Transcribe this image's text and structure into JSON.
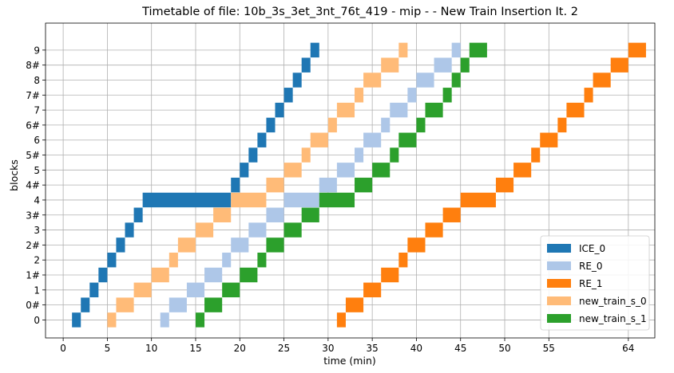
{
  "chart_data": {
    "type": "bar",
    "orientation": "horizontal-gantt",
    "title": "Timetable of file: 10b_3s_3et_3nt_76t_419 - mip -  - New Train Insertion It. 2",
    "xlabel": "time (min)",
    "ylabel": "blocks",
    "grid": true,
    "legend_position": "lower-right",
    "xlim": [
      -2,
      67
    ],
    "x_ticks": [
      0,
      5,
      10,
      15,
      20,
      25,
      30,
      35,
      40,
      45,
      50,
      55,
      64
    ],
    "x_tick_labels": [
      "0",
      "5",
      "10",
      "15",
      "20",
      "25",
      "30",
      "35",
      "40",
      "45",
      "50",
      "55",
      "64"
    ],
    "categories": [
      "0",
      "0#",
      "1",
      "1#",
      "2",
      "2#",
      "3",
      "3#",
      "4",
      "4#",
      "5",
      "5#",
      "6",
      "6#",
      "7",
      "7#",
      "8",
      "8#",
      "9"
    ],
    "series": [
      {
        "name": "ICE_0",
        "color": "#1f77b4",
        "segments": [
          {
            "block": "0",
            "start": 1.0,
            "end": 2.0
          },
          {
            "block": "0#",
            "start": 2.0,
            "end": 3.0
          },
          {
            "block": "1",
            "start": 3.0,
            "end": 4.0
          },
          {
            "block": "1#",
            "start": 4.0,
            "end": 5.0
          },
          {
            "block": "2",
            "start": 5.0,
            "end": 6.0
          },
          {
            "block": "2#",
            "start": 6.0,
            "end": 7.0
          },
          {
            "block": "3",
            "start": 7.0,
            "end": 8.0
          },
          {
            "block": "3#",
            "start": 8.0,
            "end": 9.0
          },
          {
            "block": "4",
            "start": 9.0,
            "end": 19.0
          },
          {
            "block": "4#",
            "start": 19.0,
            "end": 20.0
          },
          {
            "block": "5",
            "start": 20.0,
            "end": 21.0
          },
          {
            "block": "5#",
            "start": 21.0,
            "end": 22.0
          },
          {
            "block": "6",
            "start": 22.0,
            "end": 23.0
          },
          {
            "block": "6#",
            "start": 23.0,
            "end": 24.0
          },
          {
            "block": "7",
            "start": 24.0,
            "end": 25.0
          },
          {
            "block": "7#",
            "start": 25.0,
            "end": 26.0
          },
          {
            "block": "8",
            "start": 26.0,
            "end": 27.0
          },
          {
            "block": "8#",
            "start": 27.0,
            "end": 28.0
          },
          {
            "block": "9",
            "start": 28.0,
            "end": 29.0
          }
        ]
      },
      {
        "name": "RE_0",
        "color": "#aec7e8",
        "segments": [
          {
            "block": "0",
            "start": 11.0,
            "end": 12.0
          },
          {
            "block": "0#",
            "start": 12.0,
            "end": 14.0
          },
          {
            "block": "1",
            "start": 14.0,
            "end": 16.0
          },
          {
            "block": "1#",
            "start": 16.0,
            "end": 18.0
          },
          {
            "block": "2",
            "start": 18.0,
            "end": 19.0
          },
          {
            "block": "2#",
            "start": 19.0,
            "end": 21.0
          },
          {
            "block": "3",
            "start": 21.0,
            "end": 23.0
          },
          {
            "block": "3#",
            "start": 23.0,
            "end": 25.0
          },
          {
            "block": "4",
            "start": 25.0,
            "end": 29.0
          },
          {
            "block": "4#",
            "start": 29.0,
            "end": 31.0
          },
          {
            "block": "5",
            "start": 31.0,
            "end": 33.0
          },
          {
            "block": "5#",
            "start": 33.0,
            "end": 34.0
          },
          {
            "block": "6",
            "start": 34.0,
            "end": 36.0
          },
          {
            "block": "6#",
            "start": 36.0,
            "end": 37.0
          },
          {
            "block": "7",
            "start": 37.0,
            "end": 39.0
          },
          {
            "block": "7#",
            "start": 39.0,
            "end": 40.0
          },
          {
            "block": "8",
            "start": 40.0,
            "end": 42.0
          },
          {
            "block": "8#",
            "start": 42.0,
            "end": 44.0
          },
          {
            "block": "9",
            "start": 44.0,
            "end": 45.0
          }
        ]
      },
      {
        "name": "RE_1",
        "color": "#ff7f0e",
        "segments": [
          {
            "block": "0",
            "start": 31.0,
            "end": 32.0
          },
          {
            "block": "0#",
            "start": 32.0,
            "end": 34.0
          },
          {
            "block": "1",
            "start": 34.0,
            "end": 36.0
          },
          {
            "block": "1#",
            "start": 36.0,
            "end": 38.0
          },
          {
            "block": "2",
            "start": 38.0,
            "end": 39.0
          },
          {
            "block": "2#",
            "start": 39.0,
            "end": 41.0
          },
          {
            "block": "3",
            "start": 41.0,
            "end": 43.0
          },
          {
            "block": "3#",
            "start": 43.0,
            "end": 45.0
          },
          {
            "block": "4",
            "start": 45.0,
            "end": 49.0
          },
          {
            "block": "4#",
            "start": 49.0,
            "end": 51.0
          },
          {
            "block": "5",
            "start": 51.0,
            "end": 53.0
          },
          {
            "block": "5#",
            "start": 53.0,
            "end": 54.0
          },
          {
            "block": "6",
            "start": 54.0,
            "end": 56.0
          },
          {
            "block": "6#",
            "start": 56.0,
            "end": 57.0
          },
          {
            "block": "7",
            "start": 57.0,
            "end": 59.0
          },
          {
            "block": "7#",
            "start": 59.0,
            "end": 60.0
          },
          {
            "block": "8",
            "start": 60.0,
            "end": 62.0
          },
          {
            "block": "8#",
            "start": 62.0,
            "end": 64.0
          },
          {
            "block": "9",
            "start": 64.0,
            "end": 66.0
          }
        ]
      },
      {
        "name": "new_train_s_0",
        "color": "#ffbb78",
        "segments": [
          {
            "block": "0",
            "start": 5.0,
            "end": 6.0
          },
          {
            "block": "0#",
            "start": 6.0,
            "end": 8.0
          },
          {
            "block": "1",
            "start": 8.0,
            "end": 10.0
          },
          {
            "block": "1#",
            "start": 10.0,
            "end": 12.0
          },
          {
            "block": "2",
            "start": 12.0,
            "end": 13.0
          },
          {
            "block": "2#",
            "start": 13.0,
            "end": 15.0
          },
          {
            "block": "3",
            "start": 15.0,
            "end": 17.0
          },
          {
            "block": "3#",
            "start": 17.0,
            "end": 19.0
          },
          {
            "block": "4",
            "start": 19.0,
            "end": 23.0
          },
          {
            "block": "4#",
            "start": 23.0,
            "end": 25.0
          },
          {
            "block": "5",
            "start": 25.0,
            "end": 27.0
          },
          {
            "block": "5#",
            "start": 27.0,
            "end": 28.0
          },
          {
            "block": "6",
            "start": 28.0,
            "end": 30.0
          },
          {
            "block": "6#",
            "start": 30.0,
            "end": 31.0
          },
          {
            "block": "7",
            "start": 31.0,
            "end": 33.0
          },
          {
            "block": "7#",
            "start": 33.0,
            "end": 34.0
          },
          {
            "block": "8",
            "start": 34.0,
            "end": 36.0
          },
          {
            "block": "8#",
            "start": 36.0,
            "end": 38.0
          },
          {
            "block": "9",
            "start": 38.0,
            "end": 39.0
          }
        ]
      },
      {
        "name": "new_train_s_1",
        "color": "#2ca02c",
        "segments": [
          {
            "block": "0",
            "start": 15.0,
            "end": 16.0
          },
          {
            "block": "0#",
            "start": 16.0,
            "end": 18.0
          },
          {
            "block": "1",
            "start": 18.0,
            "end": 20.0
          },
          {
            "block": "1#",
            "start": 20.0,
            "end": 22.0
          },
          {
            "block": "2",
            "start": 22.0,
            "end": 23.0
          },
          {
            "block": "2#",
            "start": 23.0,
            "end": 25.0
          },
          {
            "block": "3",
            "start": 25.0,
            "end": 27.0
          },
          {
            "block": "3#",
            "start": 27.0,
            "end": 29.0
          },
          {
            "block": "4",
            "start": 29.0,
            "end": 33.0
          },
          {
            "block": "4#",
            "start": 33.0,
            "end": 35.0
          },
          {
            "block": "5",
            "start": 35.0,
            "end": 37.0
          },
          {
            "block": "5#",
            "start": 37.0,
            "end": 38.0
          },
          {
            "block": "6",
            "start": 38.0,
            "end": 40.0
          },
          {
            "block": "6#",
            "start": 40.0,
            "end": 41.0
          },
          {
            "block": "7",
            "start": 41.0,
            "end": 43.0
          },
          {
            "block": "7#",
            "start": 43.0,
            "end": 44.0
          },
          {
            "block": "8",
            "start": 44.0,
            "end": 45.0
          },
          {
            "block": "8#",
            "start": 45.0,
            "end": 46.0
          },
          {
            "block": "9",
            "start": 46.0,
            "end": 48.0
          }
        ]
      }
    ]
  }
}
